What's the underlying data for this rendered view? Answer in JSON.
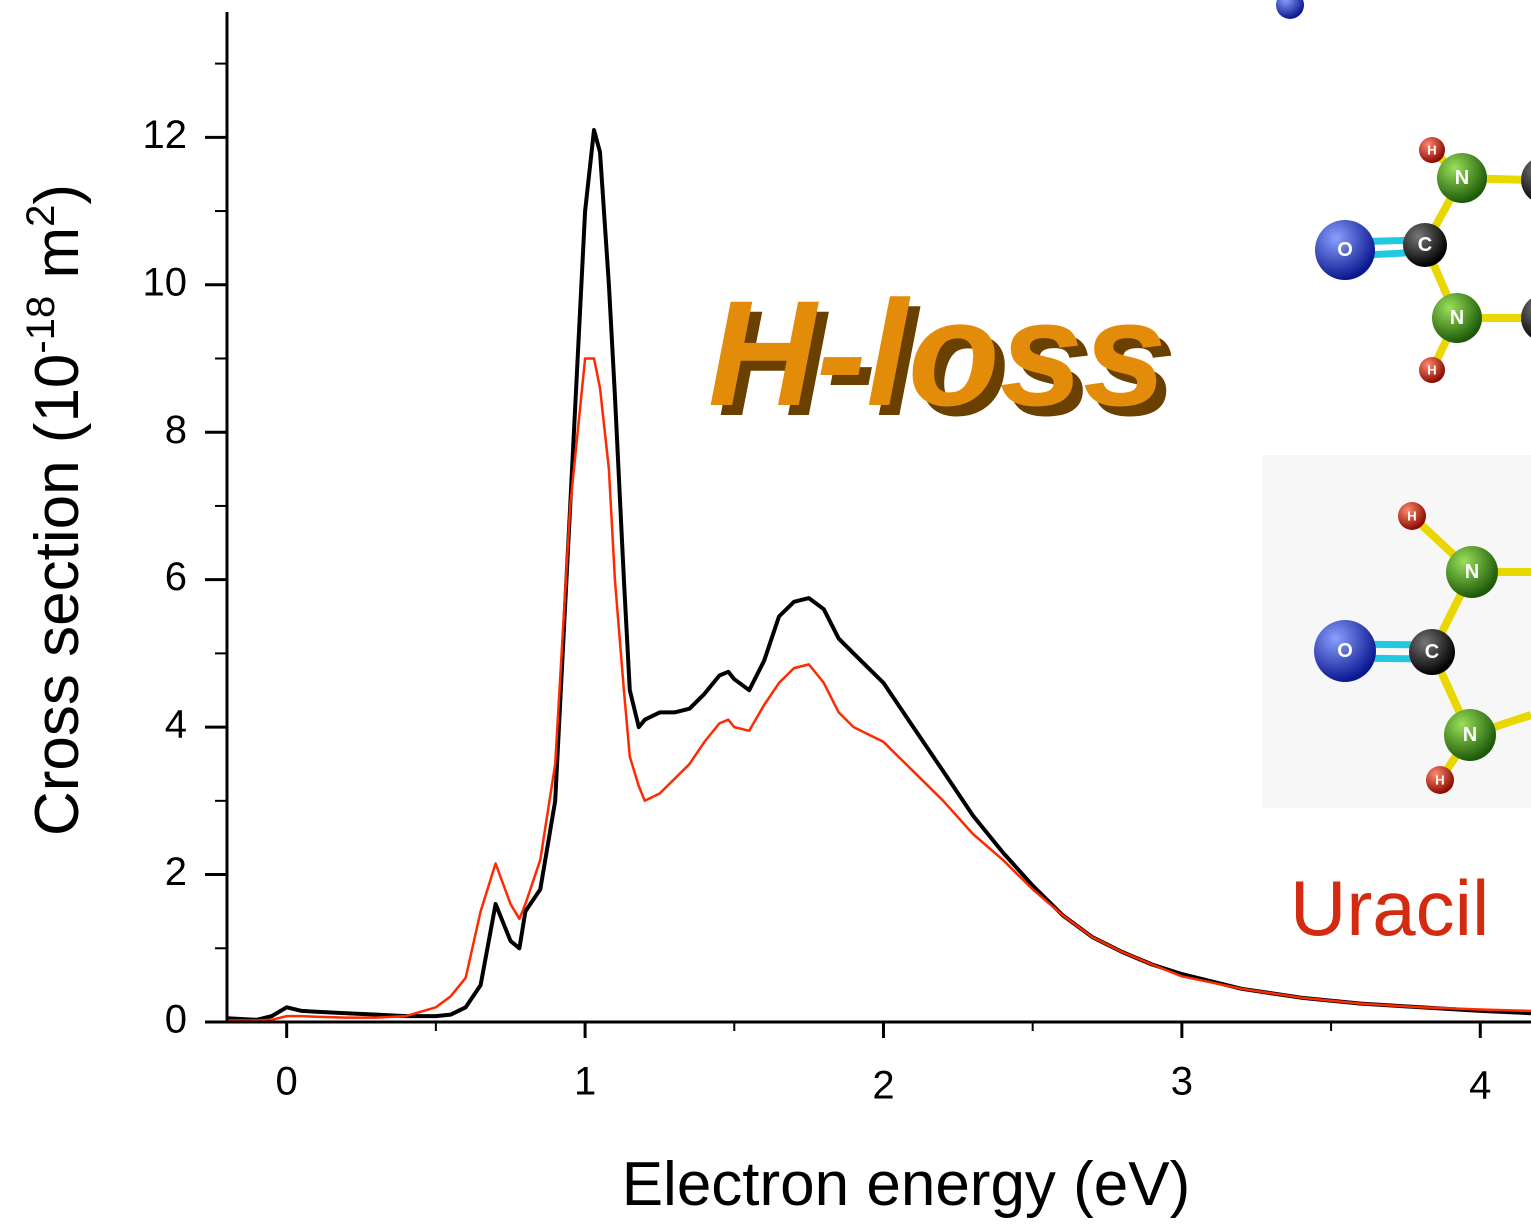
{
  "chart_data": {
    "type": "line",
    "y_label": [
      "Cross section (10",
      "-18",
      " m",
      "2",
      ")"
    ],
    "x_label": "Electron energy (eV)",
    "annotations": [
      "H-loss",
      "Uracil"
    ],
    "molecules": [
      [
        "H",
        "N",
        "O",
        "C",
        "N",
        "H"
      ],
      [
        "H",
        "N",
        "O",
        "C",
        "N",
        "H"
      ]
    ],
    "xlim": [
      -0.2,
      4.17
    ],
    "ylim": [
      0,
      13.7
    ],
    "xticks": [
      0,
      1,
      2,
      3,
      4
    ],
    "xminorticks": [
      0.5,
      1.5,
      2.5,
      3.5
    ],
    "yticks": [
      0,
      2,
      4,
      6,
      8,
      10,
      12
    ],
    "yminorticks": [
      1,
      3,
      5,
      7,
      9,
      11,
      13
    ],
    "grid": false,
    "x": [
      -0.2,
      -0.1,
      -0.05,
      0,
      0.05,
      0.1,
      0.2,
      0.3,
      0.4,
      0.5,
      0.55,
      0.6,
      0.65,
      0.7,
      0.75,
      0.78,
      0.8,
      0.85,
      0.9,
      0.95,
      1.0,
      1.03,
      1.05,
      1.08,
      1.1,
      1.13,
      1.15,
      1.18,
      1.2,
      1.25,
      1.3,
      1.35,
      1.4,
      1.45,
      1.48,
      1.5,
      1.55,
      1.6,
      1.65,
      1.7,
      1.75,
      1.8,
      1.85,
      1.9,
      2.0,
      2.1,
      2.2,
      2.3,
      2.4,
      2.5,
      2.6,
      2.7,
      2.8,
      2.9,
      3.0,
      3.2,
      3.4,
      3.6,
      3.8,
      4.0,
      4.17
    ],
    "series": [
      {
        "color": "#000000",
        "values": [
          0.05,
          0.03,
          0.08,
          0.2,
          0.15,
          0.14,
          0.12,
          0.1,
          0.08,
          0.08,
          0.1,
          0.2,
          0.5,
          1.6,
          1.1,
          1.0,
          1.5,
          1.8,
          3.0,
          7.0,
          11.0,
          12.1,
          11.8,
          10.0,
          8.5,
          6.0,
          4.5,
          4.0,
          4.1,
          4.2,
          4.2,
          4.25,
          4.45,
          4.7,
          4.75,
          4.65,
          4.5,
          4.9,
          5.5,
          5.7,
          5.75,
          5.6,
          5.2,
          5.0,
          4.6,
          4.0,
          3.4,
          2.8,
          2.3,
          1.85,
          1.45,
          1.15,
          0.95,
          0.78,
          0.65,
          0.45,
          0.33,
          0.25,
          0.2,
          0.15,
          0.12
        ]
      },
      {
        "color": "#ff2a00",
        "values": [
          0.02,
          0.02,
          0.03,
          0.08,
          0.08,
          0.07,
          0.06,
          0.06,
          0.08,
          0.2,
          0.35,
          0.6,
          1.5,
          2.15,
          1.6,
          1.4,
          1.6,
          2.2,
          3.5,
          7.0,
          9.0,
          9.0,
          8.6,
          7.5,
          6.0,
          4.5,
          3.6,
          3.2,
          3.0,
          3.1,
          3.3,
          3.5,
          3.8,
          4.05,
          4.1,
          4.0,
          3.95,
          4.3,
          4.6,
          4.8,
          4.85,
          4.6,
          4.2,
          4.0,
          3.8,
          3.4,
          3.0,
          2.55,
          2.2,
          1.8,
          1.45,
          1.15,
          0.95,
          0.78,
          0.62,
          0.45,
          0.33,
          0.25,
          0.2,
          0.17,
          0.15
        ]
      }
    ]
  }
}
